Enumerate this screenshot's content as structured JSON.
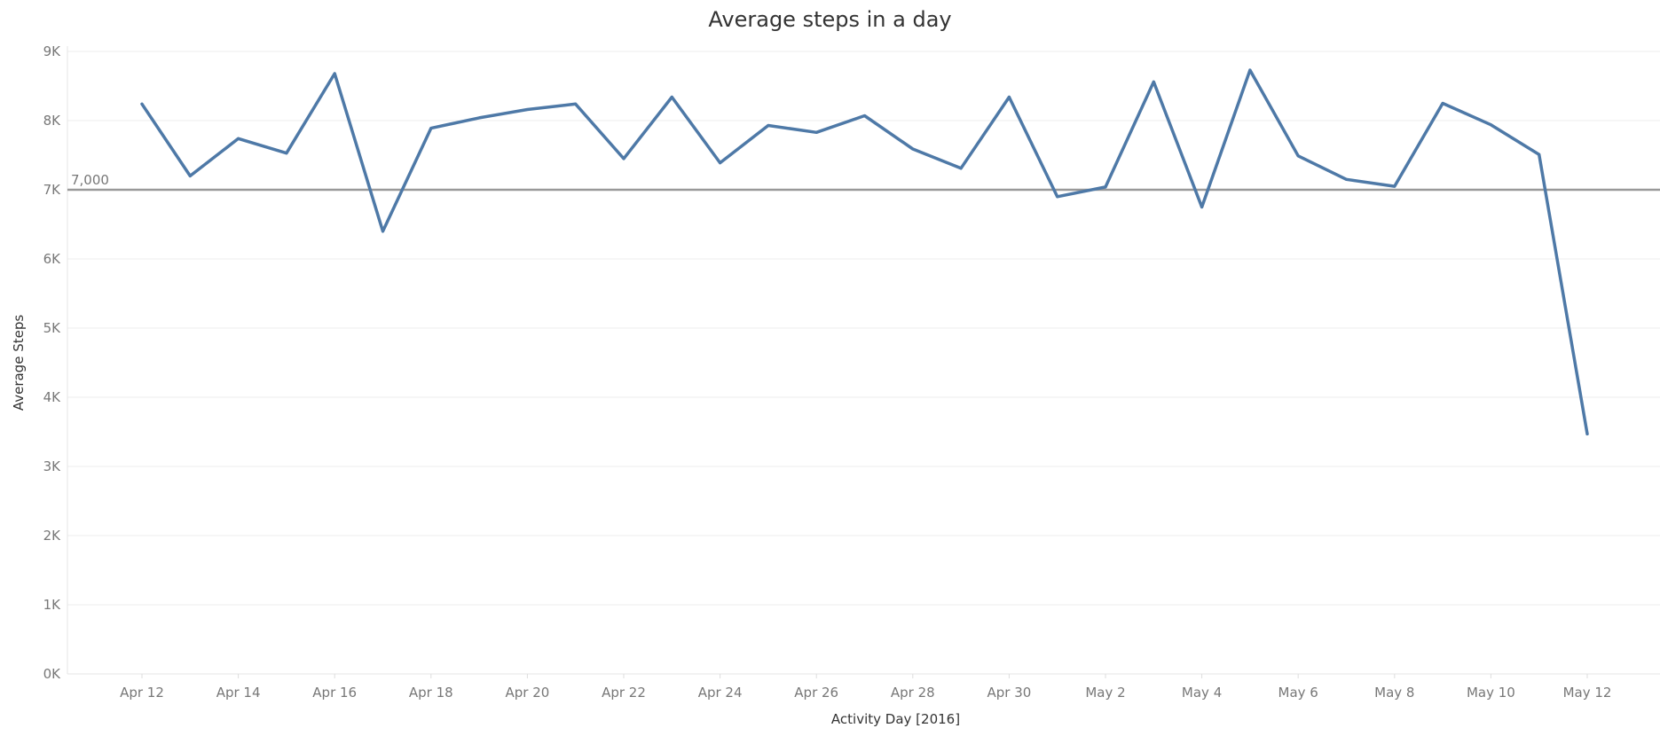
{
  "chart_data": {
    "type": "line",
    "title": "Average steps in a day",
    "xlabel": "Activity Day [2016]",
    "ylabel": "Average Steps",
    "ylim": [
      0,
      9000
    ],
    "grid": true,
    "y_ticks": [
      "0K",
      "1K",
      "2K",
      "3K",
      "4K",
      "5K",
      "6K",
      "7K",
      "8K",
      "9K"
    ],
    "x_tick_labels": [
      "Apr 12",
      "Apr 14",
      "Apr 16",
      "Apr 18",
      "Apr 20",
      "Apr 22",
      "Apr 24",
      "Apr 26",
      "Apr 28",
      "Apr 30",
      "May 2",
      "May 4",
      "May 6",
      "May 8",
      "May 10",
      "May 12"
    ],
    "reference_line": {
      "value": 7000,
      "label": "7,000"
    },
    "colors": {
      "line": "#4e79a7",
      "reference": "#999999",
      "grid": "#eeeeee"
    },
    "x": [
      "Apr 12",
      "Apr 13",
      "Apr 14",
      "Apr 15",
      "Apr 16",
      "Apr 17",
      "Apr 18",
      "Apr 19",
      "Apr 20",
      "Apr 21",
      "Apr 22",
      "Apr 23",
      "Apr 24",
      "Apr 25",
      "Apr 26",
      "Apr 27",
      "Apr 28",
      "Apr 29",
      "Apr 30",
      "May 1",
      "May 2",
      "May 3",
      "May 4",
      "May 5",
      "May 6",
      "May 7",
      "May 8",
      "May 9",
      "May 10",
      "May 11",
      "May 12"
    ],
    "series": [
      {
        "values": [
          8240,
          7200,
          7740,
          7530,
          8680,
          6400,
          7890,
          8040,
          8160,
          8240,
          7450,
          8340,
          7390,
          7930,
          7830,
          8070,
          7590,
          7310,
          8340,
          6900,
          7040,
          8560,
          6750,
          8730,
          7490,
          7150,
          7050,
          8250,
          7940,
          7510,
          3470
        ]
      }
    ]
  }
}
